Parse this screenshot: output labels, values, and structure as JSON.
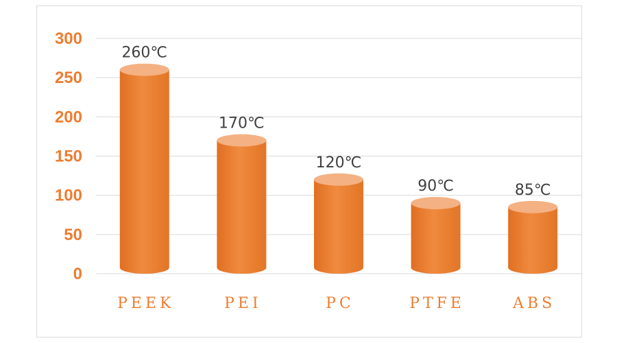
{
  "chart_data": {
    "type": "bar",
    "categories": [
      "PEEK",
      "PEI",
      "PC",
      "PTFE",
      "ABS"
    ],
    "values": [
      260,
      170,
      120,
      90,
      85
    ],
    "data_labels": [
      "260℃",
      "170℃",
      "120℃",
      "90℃",
      "85℃"
    ],
    "yticks": [
      "0",
      "50",
      "100",
      "150",
      "200",
      "250",
      "300"
    ],
    "ylim": [
      0,
      300
    ],
    "grid": true,
    "legend": "none",
    "bar_style": "cylinder"
  },
  "colors": {
    "bar": "#ED7D31",
    "bar_top": "#F4B183",
    "axis_text": "#ED7D31",
    "label_text": "#404040",
    "grid": "#d9d9d9"
  }
}
